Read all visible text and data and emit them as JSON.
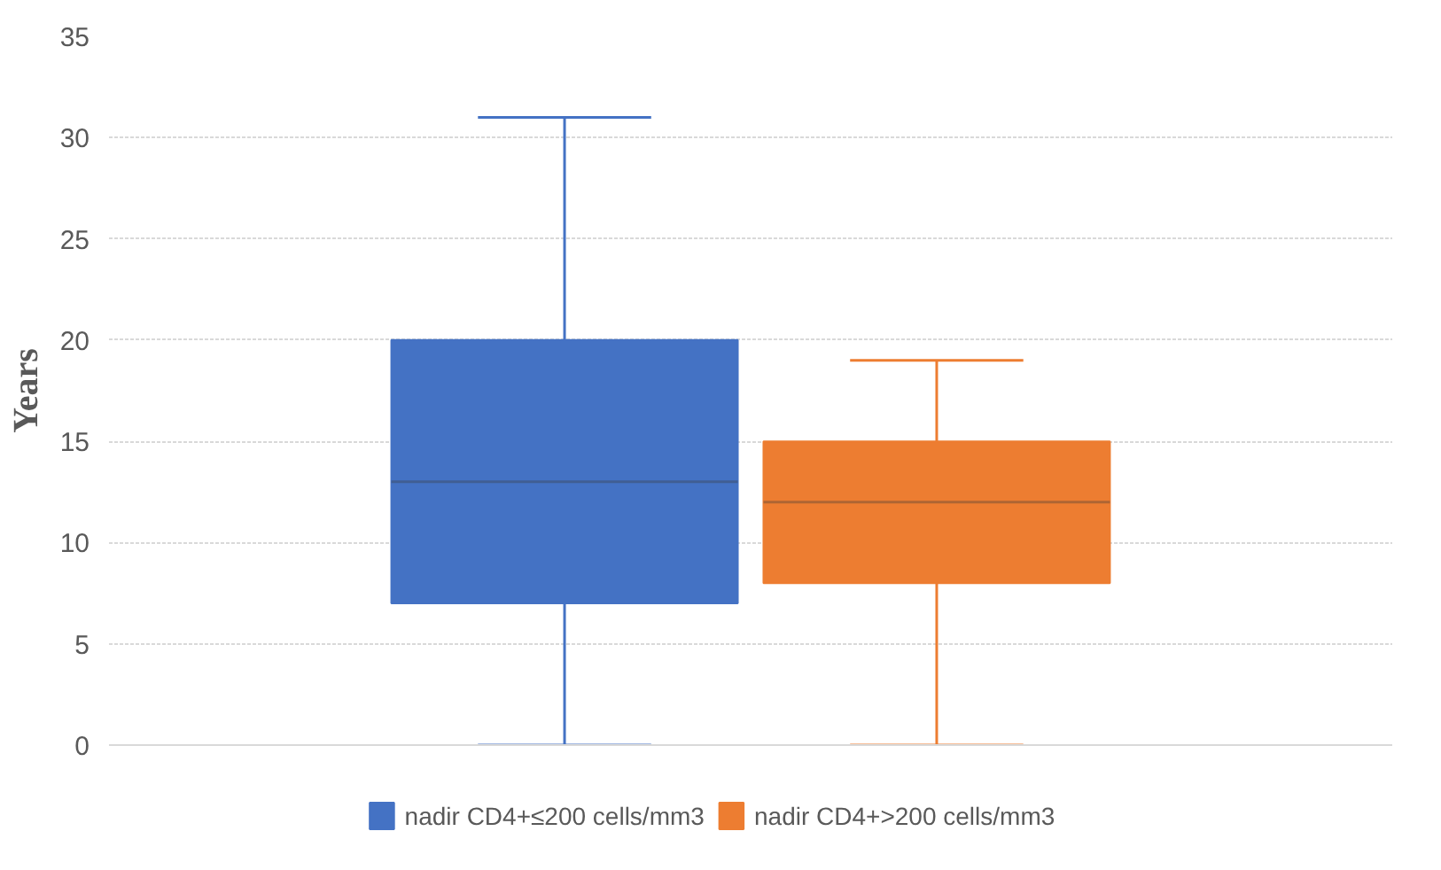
{
  "chart_data": {
    "type": "box",
    "ylabel": "Years",
    "categories": [
      null
    ],
    "series": [
      {
        "name": "nadir CD4+≤200 cells/mm3",
        "color": "#4472c4",
        "boxes": [
          {
            "low": 0,
            "q1": 7,
            "median": 13,
            "q3": 20,
            "high": 31
          }
        ]
      },
      {
        "name": "nadir CD4+>200 cells/mm3",
        "color": "#ed7d31",
        "boxes": [
          {
            "low": 0,
            "q1": 8,
            "median": 12,
            "q3": 15,
            "high": 19
          }
        ]
      }
    ],
    "ylim": [
      0,
      35
    ],
    "yticks": [
      0,
      5,
      10,
      15,
      20,
      25,
      30,
      35
    ],
    "grid": "y",
    "legend": "bottom",
    "tick_labels": "y"
  }
}
